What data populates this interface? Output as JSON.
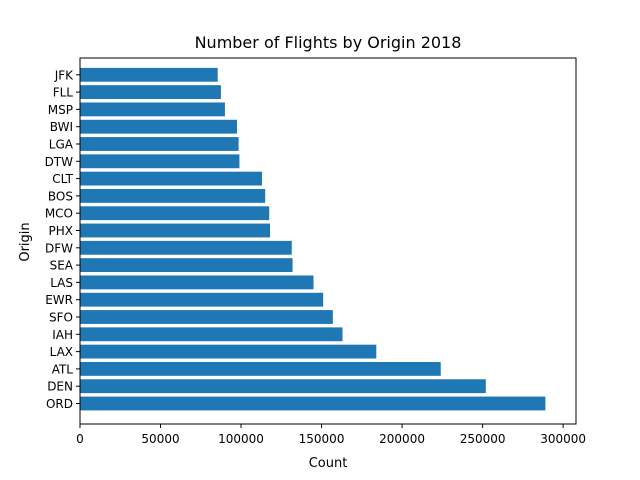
{
  "chart_data": {
    "type": "bar",
    "orientation": "horizontal",
    "title": "Number of Flights by Origin 2018",
    "xlabel": "Count",
    "ylabel": "Origin",
    "categories": [
      "ORD",
      "DEN",
      "ATL",
      "LAX",
      "IAH",
      "SFO",
      "EWR",
      "LAS",
      "SEA",
      "DFW",
      "PHX",
      "MCO",
      "BOS",
      "CLT",
      "DTW",
      "LGA",
      "BWI",
      "MSP",
      "FLL",
      "JFK"
    ],
    "values": [
      289000,
      252000,
      224000,
      184000,
      163000,
      157000,
      151000,
      145000,
      132000,
      131500,
      118000,
      117500,
      115000,
      113000,
      99000,
      98500,
      97500,
      90000,
      87500,
      85500
    ],
    "xlim": [
      0,
      308000
    ],
    "xticks": [
      0,
      50000,
      100000,
      150000,
      200000,
      250000,
      300000
    ],
    "grid": false,
    "bar_color": "#1f77b4"
  }
}
